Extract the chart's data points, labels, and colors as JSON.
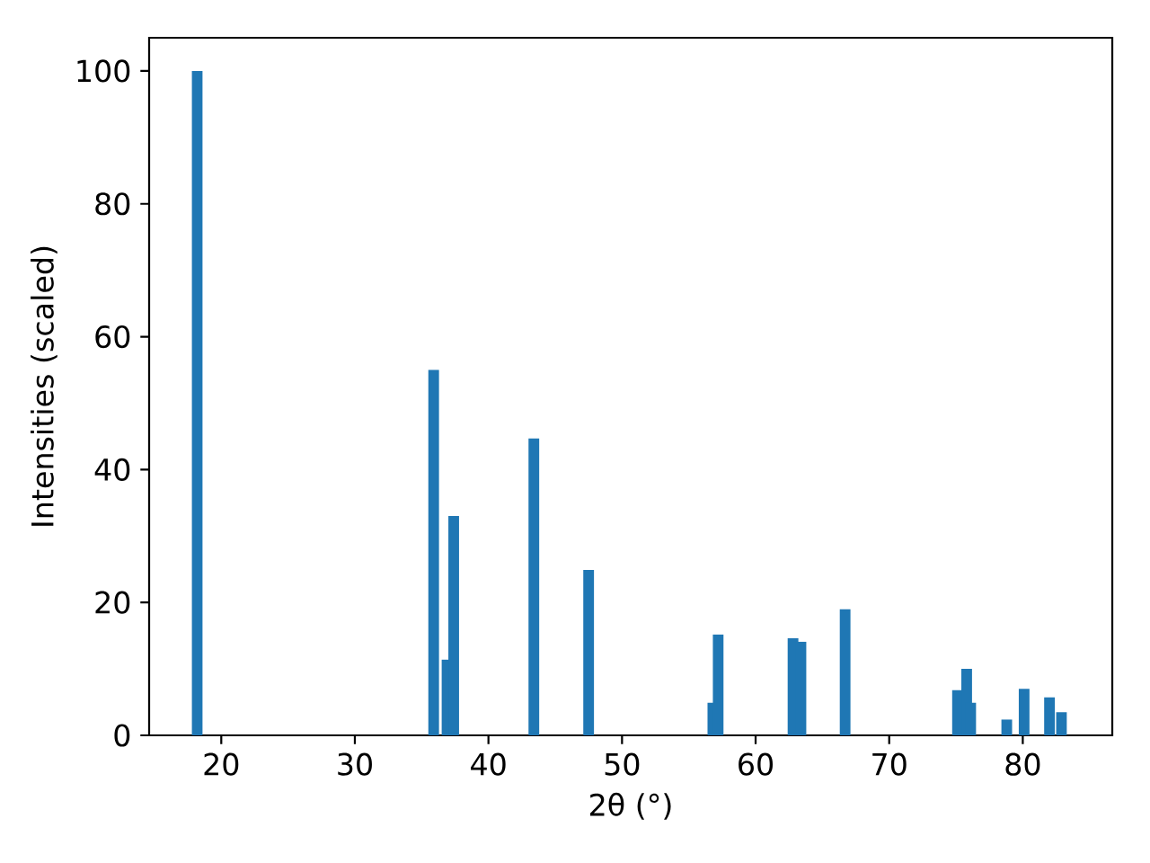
{
  "chart_data": {
    "type": "bar",
    "xlabel": "2θ (°)",
    "ylabel": "Intensities (scaled)",
    "x": [
      18.2,
      35.9,
      36.9,
      37.4,
      43.4,
      47.5,
      56.8,
      57.2,
      62.8,
      63.4,
      66.7,
      75.1,
      75.8,
      76.1,
      78.8,
      80.1,
      82.0,
      82.9
    ],
    "values": [
      100,
      55,
      11.4,
      33,
      44.7,
      24.9,
      4.9,
      15.2,
      14.6,
      14.1,
      19,
      6.8,
      10,
      4.9,
      2.4,
      7.0,
      5.7,
      3.5
    ],
    "color": "#1f77b4",
    "xlim": [
      14.6,
      86.7
    ],
    "ylim": [
      0,
      105
    ],
    "xticks": [
      20,
      30,
      40,
      50,
      60,
      70,
      80
    ],
    "yticks": [
      0,
      20,
      40,
      60,
      80,
      100
    ]
  }
}
